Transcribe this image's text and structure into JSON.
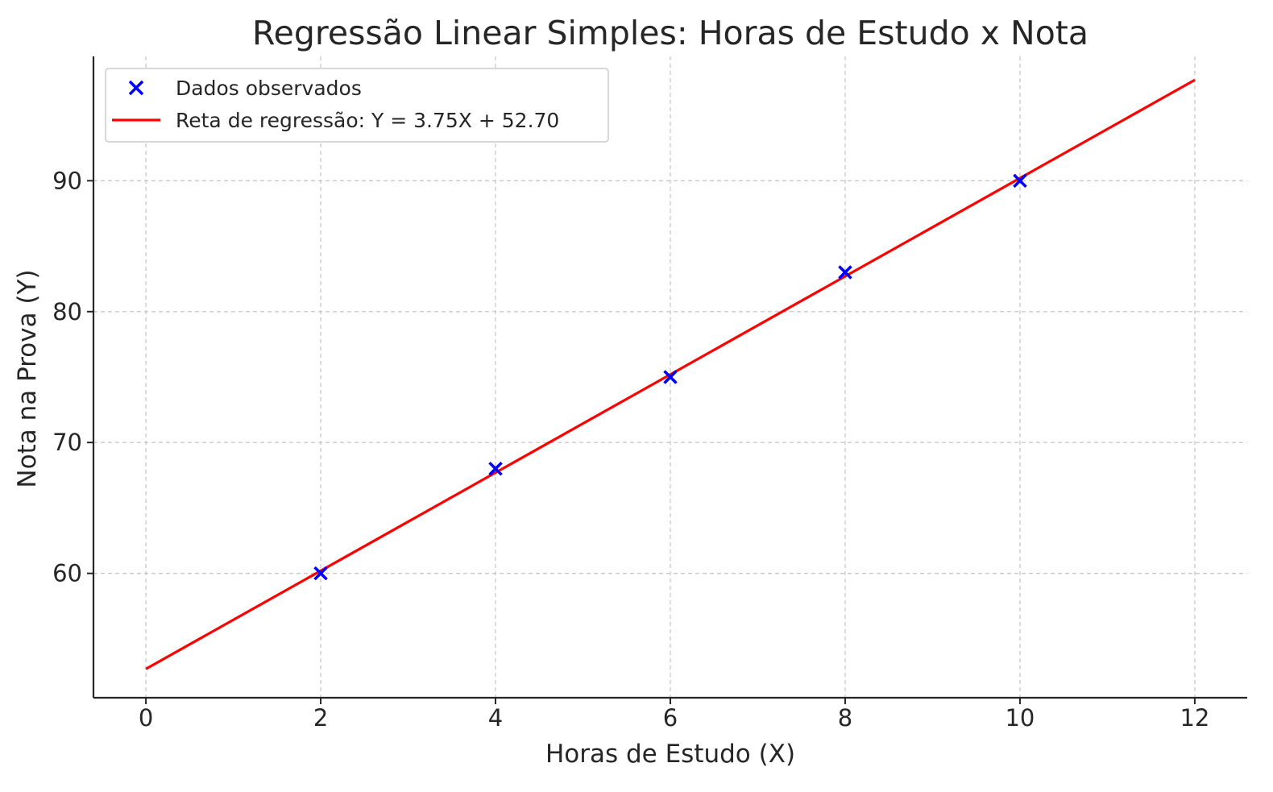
{
  "chart_data": {
    "type": "scatter",
    "title": "Regressão Linear Simples: Horas de Estudo x Nota",
    "xlabel": "Horas de Estudo (X)",
    "ylabel": "Nota na Prova (Y)",
    "xlim": [
      -0.6,
      12.6
    ],
    "ylim": [
      50.5,
      99.5
    ],
    "xticks": [
      0,
      2,
      4,
      6,
      8,
      10,
      12
    ],
    "yticks": [
      60,
      70,
      80,
      90
    ],
    "grid": true,
    "legend_position": "top-left",
    "series": [
      {
        "name": "Dados observados",
        "kind": "scatter",
        "marker": "x",
        "color": "#0000ff",
        "x": [
          2,
          4,
          6,
          8,
          10
        ],
        "y": [
          60,
          68,
          75,
          83,
          90
        ]
      },
      {
        "name": "Reta de regressão: Y = 3.75X + 52.70",
        "kind": "line",
        "color": "#ff0000",
        "slope": 3.75,
        "intercept": 52.7,
        "x": [
          0,
          12
        ],
        "y": [
          52.7,
          97.7
        ]
      }
    ]
  }
}
